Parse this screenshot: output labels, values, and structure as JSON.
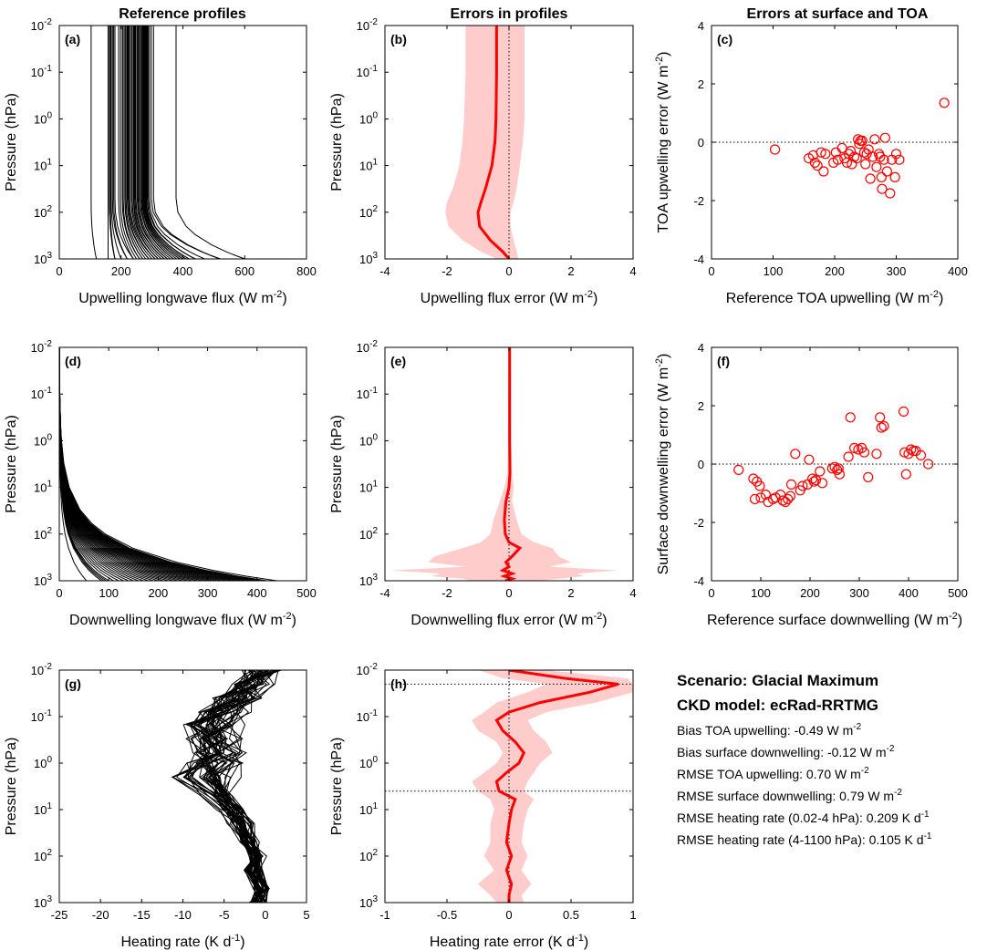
{
  "column_titles": [
    "Reference profiles",
    "Errors in profiles",
    "Errors at surface and TOA"
  ],
  "info": {
    "scenario": "Scenario: Glacial Maximum",
    "ckd_model": "CKD model: ecRad-RRTMG",
    "stats": [
      {
        "text": "Bias TOA upwelling: -0.49 W m",
        "sup": "-2"
      },
      {
        "text": "Bias surface downwelling: -0.12 W m",
        "sup": "-2"
      },
      {
        "text": "RMSE TOA upwelling: 0.70 W m",
        "sup": "-2"
      },
      {
        "text": "RMSE surface downwelling: 0.79 W m",
        "sup": "-2"
      },
      {
        "text": "RMSE heating rate (0.02-4 hPa):  0.209 K d",
        "sup": "-1"
      },
      {
        "text": "RMSE heating rate (4-1100 hPa):  0.105 K d",
        "sup": "-1"
      }
    ]
  },
  "colors": {
    "profile": "#000000",
    "error": "#ff0000",
    "shade": "#ffcccc"
  },
  "chart_data": [
    {
      "panel": "(a)",
      "type": "line",
      "xlabel": "Upwelling longwave flux (W m",
      "xlabel_sup": "-2",
      "xlabel_tail": ")",
      "ylabel": "Pressure (hPa)",
      "yscale": "log",
      "yreverse": true,
      "xlim": [
        0,
        800
      ],
      "xticks": [
        "0",
        "200",
        "400",
        "600",
        "800"
      ],
      "ylim": [
        0.01,
        1000
      ],
      "yticks": [
        {
          "base": "10",
          "exp": "-2"
        },
        {
          "base": "10",
          "exp": "-1"
        },
        {
          "base": "10",
          "exp": "0"
        },
        {
          "base": "10",
          "exp": "1"
        },
        {
          "base": "10",
          "exp": "2"
        },
        {
          "base": "10",
          "exp": "3"
        }
      ],
      "profile_family": "upwelling",
      "toa_values": [
        103,
        158,
        162,
        165,
        168,
        172,
        176,
        180,
        192,
        198,
        204,
        207,
        212,
        213,
        216,
        220,
        223,
        226,
        228,
        233,
        236,
        240,
        242,
        245,
        248,
        252,
        255,
        258,
        262,
        265,
        268,
        270,
        272,
        274,
        276,
        278,
        280,
        282,
        285,
        288,
        292,
        298,
        305,
        378
      ],
      "surface_values": [
        120,
        180,
        200,
        220,
        240,
        250,
        260,
        270,
        280,
        290,
        300,
        310,
        320,
        330,
        340,
        350,
        360,
        370,
        380,
        390,
        400,
        410,
        420,
        440,
        470,
        520,
        600
      ]
    },
    {
      "panel": "(b)",
      "type": "line",
      "xlabel": "Upwelling flux error (W m",
      "xlabel_sup": "-2",
      "xlabel_tail": ")",
      "ylabel": "Pressure (hPa)",
      "yscale": "log",
      "yreverse": true,
      "xlim": [
        -4,
        4
      ],
      "xticks": [
        "-4",
        "-2",
        "0",
        "2",
        "4"
      ],
      "ylim": [
        0.01,
        1000
      ],
      "yticks": [
        {
          "base": "10",
          "exp": "-2"
        },
        {
          "base": "10",
          "exp": "-1"
        },
        {
          "base": "10",
          "exp": "0"
        },
        {
          "base": "10",
          "exp": "1"
        },
        {
          "base": "10",
          "exp": "2"
        },
        {
          "base": "10",
          "exp": "3"
        }
      ],
      "reference_x": 0,
      "series": [
        {
          "p": [
            0.01,
            0.1,
            1,
            3,
            10,
            30,
            60,
            100,
            200,
            400,
            700,
            1000
          ],
          "mean": [
            -0.4,
            -0.4,
            -0.42,
            -0.45,
            -0.55,
            -0.75,
            -0.9,
            -1.0,
            -0.95,
            -0.6,
            -0.2,
            0.0
          ],
          "lower": [
            -1.4,
            -1.4,
            -1.45,
            -1.5,
            -1.6,
            -1.8,
            -2.0,
            -2.05,
            -1.95,
            -1.5,
            -0.9,
            -0.4
          ],
          "upper": [
            0.5,
            0.5,
            0.5,
            0.45,
            0.35,
            0.25,
            0.15,
            0.05,
            0.05,
            0.15,
            0.25,
            0.3
          ]
        }
      ]
    },
    {
      "panel": "(c)",
      "type": "scatter",
      "xlabel": "Reference TOA upwelling (W m",
      "xlabel_sup": "-2",
      "xlabel_tail": ")",
      "ylabel": "TOA upwelling error (W m",
      "ylabel_sup": "-2",
      "ylabel_tail": ")",
      "xlim": [
        0,
        400
      ],
      "xticks": [
        "0",
        "100",
        "200",
        "300",
        "400"
      ],
      "ylim": [
        -4,
        4
      ],
      "yticks": [
        "-4",
        "-2",
        "0",
        "2",
        "4"
      ],
      "reference_y": 0,
      "points": [
        [
          103,
          -0.25
        ],
        [
          158,
          -0.55
        ],
        [
          165,
          -0.45
        ],
        [
          168,
          -0.7
        ],
        [
          172,
          -0.8
        ],
        [
          178,
          -0.35
        ],
        [
          182,
          -1.0
        ],
        [
          185,
          -0.4
        ],
        [
          198,
          -0.7
        ],
        [
          202,
          -0.35
        ],
        [
          205,
          -0.6
        ],
        [
          212,
          -0.2
        ],
        [
          216,
          -0.55
        ],
        [
          220,
          -0.7
        ],
        [
          223,
          -0.4
        ],
        [
          226,
          -0.3
        ],
        [
          228,
          -0.75
        ],
        [
          232,
          -0.5
        ],
        [
          236,
          -0.55
        ],
        [
          238,
          0.1
        ],
        [
          240,
          -0.05
        ],
        [
          242,
          0.05
        ],
        [
          245,
          0.05
        ],
        [
          248,
          -0.35
        ],
        [
          250,
          -0.75
        ],
        [
          252,
          -0.4
        ],
        [
          255,
          -0.25
        ],
        [
          258,
          -1.25
        ],
        [
          262,
          -0.5
        ],
        [
          265,
          0.1
        ],
        [
          268,
          -0.85
        ],
        [
          272,
          -0.4
        ],
        [
          274,
          -0.5
        ],
        [
          276,
          -1.2
        ],
        [
          277,
          -1.6
        ],
        [
          280,
          -0.6
        ],
        [
          282,
          0.15
        ],
        [
          285,
          -1.0
        ],
        [
          290,
          -1.75
        ],
        [
          293,
          -0.6
        ],
        [
          298,
          -1.2
        ],
        [
          300,
          -0.4
        ],
        [
          305,
          -0.6
        ],
        [
          378,
          1.35
        ]
      ]
    },
    {
      "panel": "(d)",
      "type": "line",
      "xlabel": "Downwelling longwave flux (W m",
      "xlabel_sup": "-2",
      "xlabel_tail": ")",
      "ylabel": "Pressure (hPa)",
      "yscale": "log",
      "yreverse": true,
      "xlim": [
        0,
        500
      ],
      "xticks": [
        "0",
        "100",
        "200",
        "300",
        "400",
        "500"
      ],
      "ylim": [
        0.01,
        1000
      ],
      "yticks": [
        {
          "base": "10",
          "exp": "-2"
        },
        {
          "base": "10",
          "exp": "-1"
        },
        {
          "base": "10",
          "exp": "0"
        },
        {
          "base": "10",
          "exp": "1"
        },
        {
          "base": "10",
          "exp": "2"
        },
        {
          "base": "10",
          "exp": "3"
        }
      ],
      "profile_family": "downwelling",
      "surface_values": [
        55,
        85,
        90,
        95,
        100,
        110,
        120,
        130,
        140,
        150,
        160,
        170,
        180,
        190,
        200,
        210,
        220,
        230,
        240,
        250,
        260,
        270,
        280,
        290,
        300,
        310,
        320,
        330,
        340,
        350,
        360,
        370,
        380,
        390,
        400,
        410,
        420,
        440
      ]
    },
    {
      "panel": "(e)",
      "type": "line",
      "xlabel": "Downwelling flux error (W m",
      "xlabel_sup": "-2",
      "xlabel_tail": ")",
      "ylabel": "Pressure (hPa)",
      "yscale": "log",
      "yreverse": true,
      "xlim": [
        -4,
        4
      ],
      "xticks": [
        "-4",
        "-2",
        "0",
        "2",
        "4"
      ],
      "ylim": [
        0.01,
        1000
      ],
      "yticks": [
        {
          "base": "10",
          "exp": "-2"
        },
        {
          "base": "10",
          "exp": "-1"
        },
        {
          "base": "10",
          "exp": "0"
        },
        {
          "base": "10",
          "exp": "1"
        },
        {
          "base": "10",
          "exp": "2"
        },
        {
          "base": "10",
          "exp": "3"
        }
      ],
      "reference_x": 0,
      "series": [
        {
          "p": [
            0.01,
            1,
            5,
            10,
            20,
            50,
            100,
            150,
            200,
            300,
            400,
            500,
            600,
            700,
            800,
            900,
            1000
          ],
          "mean": [
            0.02,
            0.02,
            0.03,
            0.0,
            -0.1,
            -0.15,
            -0.12,
            0.0,
            0.35,
            0.1,
            -0.1,
            0.0,
            -0.2,
            0.1,
            -0.15,
            0.1,
            -0.12
          ],
          "lower": [
            -0.02,
            -0.03,
            -0.05,
            -0.15,
            -0.3,
            -0.5,
            -0.6,
            -0.9,
            -1.5,
            -2.4,
            -2.6,
            -1.4,
            -3.8,
            -2.2,
            -2.5,
            -1.5,
            -1.2
          ],
          "upper": [
            0.06,
            0.07,
            0.1,
            0.15,
            0.1,
            0.25,
            0.4,
            0.8,
            1.4,
            1.6,
            2.0,
            1.3,
            3.5,
            2.2,
            2.4,
            1.6,
            1.0
          ]
        }
      ]
    },
    {
      "panel": "(f)",
      "type": "scatter",
      "xlabel": "Reference surface downwelling (W m",
      "xlabel_sup": "-2",
      "xlabel_tail": ")",
      "ylabel": "Surface downwelling error (W m",
      "ylabel_sup": "-2",
      "ylabel_tail": ")",
      "xlim": [
        0,
        500
      ],
      "xticks": [
        "0",
        "100",
        "200",
        "300",
        "400",
        "500"
      ],
      "ylim": [
        -4,
        4
      ],
      "yticks": [
        "-4",
        "-2",
        "0",
        "2",
        "4"
      ],
      "reference_y": 0,
      "points": [
        [
          55,
          -0.2
        ],
        [
          85,
          -0.5
        ],
        [
          88,
          -1.2
        ],
        [
          92,
          -0.6
        ],
        [
          98,
          -0.75
        ],
        [
          100,
          -1.15
        ],
        [
          110,
          -1.05
        ],
        [
          115,
          -1.3
        ],
        [
          125,
          -1.2
        ],
        [
          130,
          -1.15
        ],
        [
          140,
          -1.05
        ],
        [
          145,
          -1.25
        ],
        [
          150,
          -1.3
        ],
        [
          155,
          -1.2
        ],
        [
          160,
          -1.1
        ],
        [
          162,
          -0.7
        ],
        [
          170,
          0.35
        ],
        [
          180,
          -0.9
        ],
        [
          185,
          -0.75
        ],
        [
          195,
          -0.7
        ],
        [
          198,
          0.15
        ],
        [
          205,
          -0.5
        ],
        [
          208,
          -0.6
        ],
        [
          212,
          -0.55
        ],
        [
          220,
          -0.25
        ],
        [
          225,
          -0.65
        ],
        [
          245,
          -0.15
        ],
        [
          250,
          -0.1
        ],
        [
          255,
          -0.2
        ],
        [
          258,
          -0.15
        ],
        [
          260,
          -0.35
        ],
        [
          278,
          0.25
        ],
        [
          282,
          1.6
        ],
        [
          290,
          0.55
        ],
        [
          298,
          0.5
        ],
        [
          305,
          0.55
        ],
        [
          310,
          0.4
        ],
        [
          318,
          -0.45
        ],
        [
          335,
          0.35
        ],
        [
          342,
          1.6
        ],
        [
          345,
          1.25
        ],
        [
          350,
          1.3
        ],
        [
          390,
          1.8
        ],
        [
          392,
          0.4
        ],
        [
          395,
          -0.35
        ],
        [
          400,
          0.35
        ],
        [
          405,
          0.5
        ],
        [
          410,
          0.45
        ],
        [
          415,
          0.45
        ],
        [
          425,
          0.3
        ],
        [
          440,
          0.0
        ]
      ]
    },
    {
      "panel": "(g)",
      "type": "line",
      "xlabel": "Heating rate (K d",
      "xlabel_sup": "-1",
      "xlabel_tail": ")",
      "ylabel": "Pressure (hPa)",
      "yscale": "log",
      "yreverse": true,
      "xlim": [
        -25,
        5
      ],
      "xticks": [
        "-25",
        "-20",
        "-15",
        "-10",
        "-5",
        "0",
        "5"
      ],
      "ylim": [
        0.01,
        1000
      ],
      "yticks": [
        {
          "base": "10",
          "exp": "-2"
        },
        {
          "base": "10",
          "exp": "-1"
        },
        {
          "base": "10",
          "exp": "0"
        },
        {
          "base": "10",
          "exp": "1"
        },
        {
          "base": "10",
          "exp": "2"
        },
        {
          "base": "10",
          "exp": "3"
        }
      ],
      "profile_family": "heating_rate",
      "representative_profile": {
        "p": [
          0.01,
          0.02,
          0.04,
          0.08,
          0.15,
          0.3,
          0.6,
          1,
          2,
          5,
          10,
          20,
          50,
          100,
          200,
          500,
          1000
        ],
        "x": [
          -0.5,
          -1.5,
          -3.5,
          -5.5,
          -6.5,
          -6.5,
          -6.0,
          -6.5,
          -7.0,
          -5.5,
          -4.0,
          -3.0,
          -2.0,
          -1.0,
          -1.5,
          -0.5,
          -1.0
        ]
      }
    },
    {
      "panel": "(h)",
      "type": "line",
      "xlabel": "Heating rate error (K d",
      "xlabel_sup": "-1",
      "xlabel_tail": ")",
      "ylabel": "Pressure (hPa)",
      "yscale": "log",
      "yreverse": true,
      "xlim": [
        -1,
        1
      ],
      "xticks": [
        "-1",
        "-0.5",
        "0",
        "0.5",
        "1"
      ],
      "ylim": [
        0.01,
        1000
      ],
      "yticks": [
        {
          "base": "10",
          "exp": "-2"
        },
        {
          "base": "10",
          "exp": "-1"
        },
        {
          "base": "10",
          "exp": "0"
        },
        {
          "base": "10",
          "exp": "1"
        },
        {
          "base": "10",
          "exp": "2"
        },
        {
          "base": "10",
          "exp": "3"
        }
      ],
      "reference_x": 0,
      "reference_p": [
        0.02,
        4
      ],
      "series": [
        {
          "p": [
            0.01,
            0.015,
            0.02,
            0.03,
            0.05,
            0.08,
            0.12,
            0.2,
            0.35,
            0.6,
            1,
            1.6,
            2.5,
            4,
            6,
            10,
            20,
            50,
            100,
            200,
            400,
            700,
            1000
          ],
          "mean": [
            0.0,
            0.45,
            0.88,
            0.65,
            0.25,
            0.0,
            -0.1,
            -0.05,
            0.05,
            0.12,
            0.08,
            -0.02,
            -0.1,
            -0.08,
            0.05,
            0.02,
            0.0,
            -0.02,
            0.02,
            -0.02,
            0.02,
            0.0,
            0.0
          ],
          "lower": [
            -0.25,
            -0.05,
            0.3,
            0.15,
            -0.1,
            -0.2,
            -0.3,
            -0.25,
            -0.1,
            -0.05,
            -0.1,
            -0.2,
            -0.3,
            -0.25,
            -0.15,
            -0.12,
            -0.15,
            -0.15,
            -0.2,
            -0.12,
            -0.25,
            -0.15,
            -0.1
          ],
          "upper": [
            0.3,
            0.95,
            1.0,
            1.0,
            0.7,
            0.3,
            0.15,
            0.2,
            0.3,
            0.35,
            0.25,
            0.2,
            0.15,
            0.12,
            0.2,
            0.15,
            0.12,
            0.1,
            0.15,
            0.1,
            0.18,
            0.1,
            0.12
          ]
        }
      ]
    }
  ]
}
